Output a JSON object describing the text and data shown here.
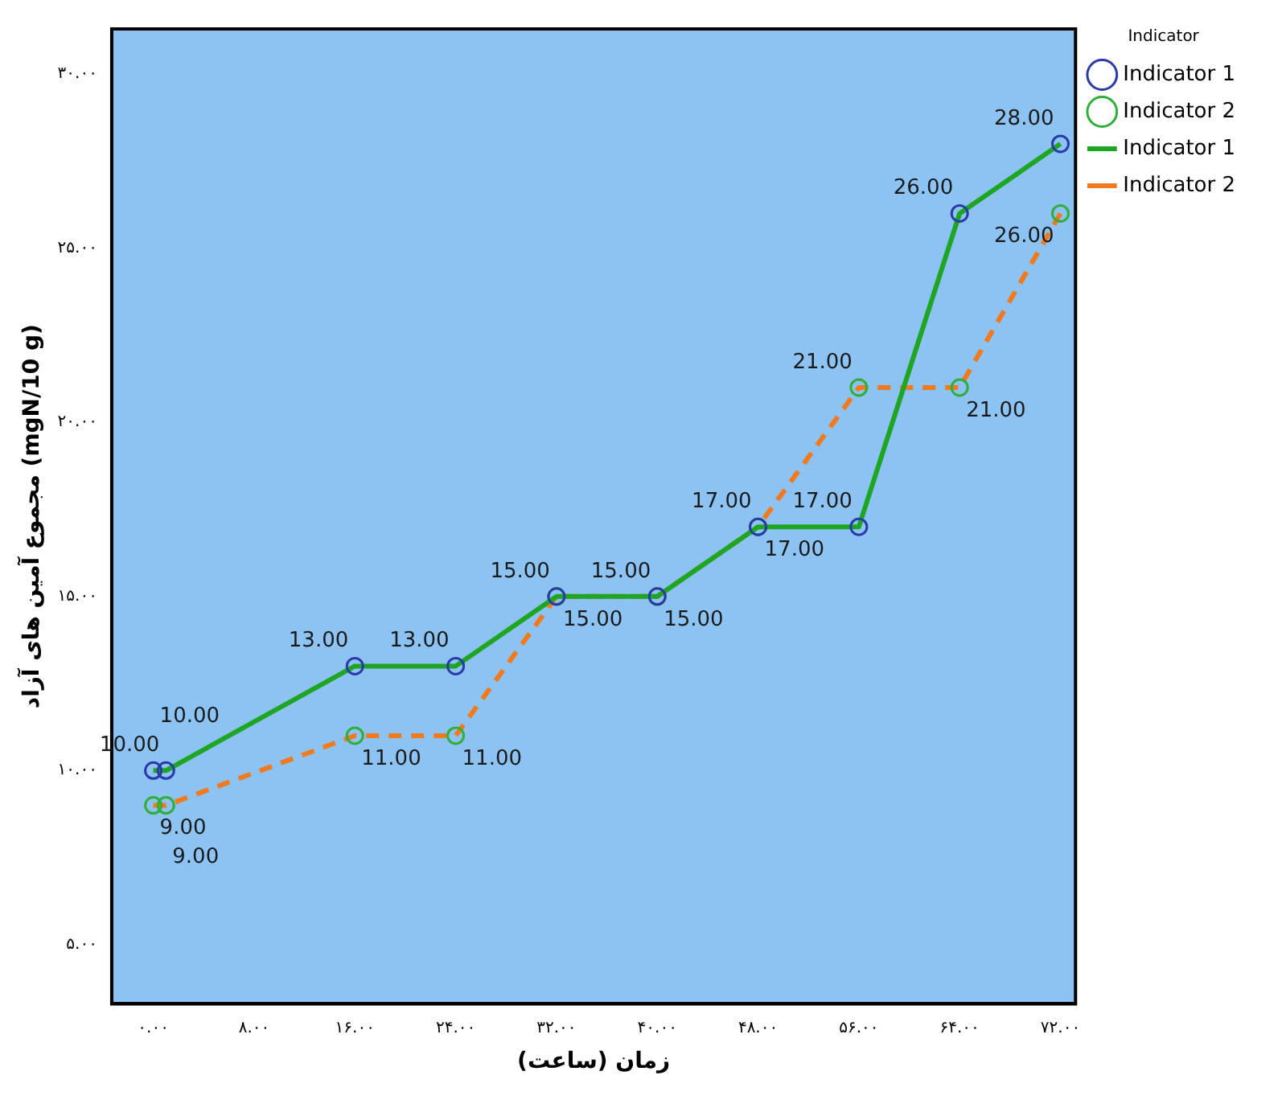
{
  "chart_data": {
    "type": "line",
    "xlabel": "زمان (ساعت)",
    "ylabel": "مجموع آمین های آزاد (mgN/10 g)",
    "legend_title": "Indicator",
    "legend": "right",
    "grid": false,
    "x": [
      0,
      1,
      16,
      24,
      32,
      40,
      48,
      56,
      64,
      72
    ],
    "xlim": [
      -3.3,
      73.2
    ],
    "xticks": [
      {
        "value": 0,
        "label": "۰.۰۰"
      },
      {
        "value": 8,
        "label": "۸.۰۰"
      },
      {
        "value": 16,
        "label": "۱۶.۰۰"
      },
      {
        "value": 24,
        "label": "۲۴.۰۰"
      },
      {
        "value": 32,
        "label": "۳۲.۰۰"
      },
      {
        "value": 40,
        "label": "۴۰.۰۰"
      },
      {
        "value": 48,
        "label": "۴۸.۰۰"
      },
      {
        "value": 56,
        "label": "۵۶.۰۰"
      },
      {
        "value": 64,
        "label": "۶۴.۰۰"
      },
      {
        "value": 72,
        "label": "۷۲.۰۰"
      }
    ],
    "ylim": [
      3.3,
      31.3
    ],
    "yticks": [
      {
        "value": 5,
        "label": "۵.۰۰"
      },
      {
        "value": 10,
        "label": "۱۰.۰۰"
      },
      {
        "value": 15,
        "label": "۱۵.۰۰"
      },
      {
        "value": 20,
        "label": "۲۰.۰۰"
      },
      {
        "value": 25,
        "label": "۲۵.۰۰"
      },
      {
        "value": 30,
        "label": "۳۰.۰۰"
      }
    ],
    "series": [
      {
        "name": "Indicator 1",
        "type": "scatter",
        "marker": "circle",
        "color": "#2a3aa8",
        "values": [
          10,
          10,
          13,
          13,
          15,
          15,
          17,
          17,
          26,
          28
        ],
        "value_labels": [
          "10.00",
          "10.00",
          "13.00",
          "13.00",
          "15.00",
          "15.00",
          "17.00",
          "17.00",
          "26.00",
          "28.00"
        ]
      },
      {
        "name": "Indicator 2",
        "type": "scatter",
        "marker": "circle",
        "color": "#2fae3a",
        "values": [
          9,
          9,
          11,
          11,
          15,
          15,
          17,
          21,
          21,
          26
        ],
        "value_labels": [
          "9.00",
          "9.00",
          "11.00",
          "11.00",
          "15.00",
          "15.00",
          "17.00",
          "21.00",
          "21.00",
          "26.00"
        ]
      },
      {
        "name": "Indicator 1",
        "marker": "none",
        "line_style": "solid",
        "color": "#1fa524",
        "values": [
          10,
          10,
          13,
          13,
          15,
          15,
          17,
          17,
          26,
          28
        ]
      },
      {
        "name": "Indicator 2",
        "marker": "none",
        "line_style": "dashed",
        "color": "#f27a1e",
        "values": [
          9,
          9,
          11,
          11,
          15,
          15,
          17,
          21,
          21,
          26
        ]
      }
    ]
  }
}
